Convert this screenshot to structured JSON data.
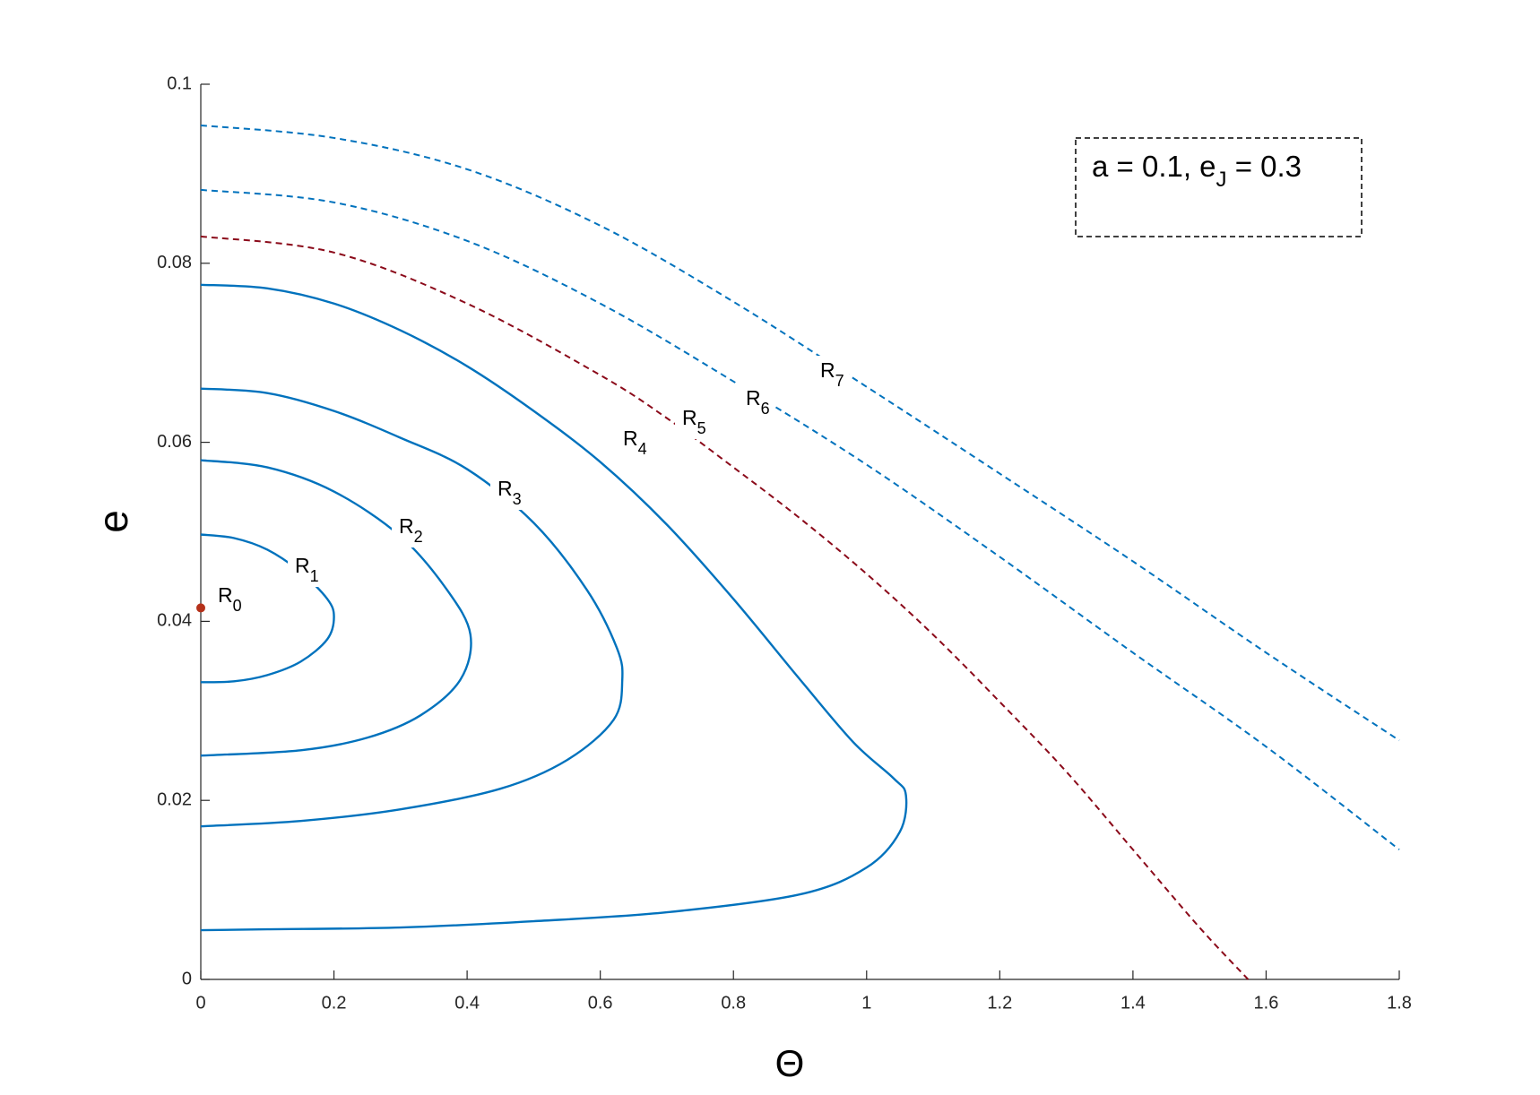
{
  "chart_data": {
    "type": "line",
    "xlabel": "Θ",
    "ylabel": "e",
    "xlim": [
      0,
      1.8
    ],
    "ylim": [
      0,
      0.1
    ],
    "xticks": [
      0,
      0.2,
      0.4,
      0.6,
      0.8,
      1,
      1.2,
      1.4,
      1.6,
      1.8
    ],
    "yticks": [
      0,
      0.02,
      0.04,
      0.06,
      0.08,
      0.1
    ],
    "annotation": [
      "a = 0.1, e",
      "J",
      " = 0.3"
    ],
    "series": [
      {
        "label": [
          "R",
          "0"
        ],
        "color": "#b5311a",
        "style": "point",
        "x": [
          0
        ],
        "values": [
          0.0415
        ]
      },
      {
        "label": [
          "R",
          "1"
        ],
        "color": "#0072bd",
        "style": "solid",
        "x": [
          0,
          0.05,
          0.1,
          0.15,
          0.19,
          0.2,
          0.19,
          0.15,
          0.1,
          0.05,
          0
        ],
        "values": [
          0.0497,
          0.0493,
          0.048,
          0.0455,
          0.0425,
          0.0405,
          0.038,
          0.0355,
          0.034,
          0.0333,
          0.0332
        ]
      },
      {
        "label": [
          "R",
          "2"
        ],
        "color": "#0072bd",
        "style": "solid",
        "x": [
          0,
          0.1,
          0.2,
          0.3,
          0.37,
          0.405,
          0.39,
          0.33,
          0.25,
          0.15,
          0
        ],
        "values": [
          0.058,
          0.0572,
          0.0545,
          0.0495,
          0.0435,
          0.0385,
          0.0335,
          0.0295,
          0.027,
          0.0256,
          0.025
        ]
      },
      {
        "label": [
          "R",
          "3"
        ],
        "color": "#0072bd",
        "style": "solid",
        "x": [
          0,
          0.1,
          0.2,
          0.3,
          0.4,
          0.5,
          0.58,
          0.625,
          0.633,
          0.62,
          0.55,
          0.45,
          0.3,
          0.15,
          0
        ],
        "values": [
          0.066,
          0.0655,
          0.0635,
          0.0605,
          0.057,
          0.051,
          0.0435,
          0.037,
          0.0334,
          0.029,
          0.0245,
          0.0213,
          0.019,
          0.0177,
          0.0171
        ]
      },
      {
        "label": [
          "R",
          "4"
        ],
        "color": "#0072bd",
        "style": "solid",
        "x": [
          0,
          0.1,
          0.2,
          0.3,
          0.4,
          0.5,
          0.6,
          0.7,
          0.8,
          0.9,
          0.98,
          1.04,
          1.059,
          1.05,
          1.0,
          0.9,
          0.7,
          0.5,
          0.3,
          0.1,
          0
        ],
        "values": [
          0.0776,
          0.0772,
          0.0755,
          0.0725,
          0.0685,
          0.0635,
          0.0578,
          0.0508,
          0.0425,
          0.0335,
          0.0265,
          0.0225,
          0.0206,
          0.0165,
          0.0125,
          0.0095,
          0.0075,
          0.0065,
          0.0058,
          0.0056,
          0.0055
        ]
      },
      {
        "label": [
          "R",
          "5"
        ],
        "color": "#8b0a1a",
        "style": "dashed",
        "x": [
          0,
          0.2,
          0.4,
          0.6,
          0.7,
          0.8,
          0.9,
          1.0,
          1.1,
          1.2,
          1.3,
          1.4,
          1.5,
          1.573
        ],
        "values": [
          0.083,
          0.0812,
          0.0755,
          0.0675,
          0.0627,
          0.0572,
          0.0515,
          0.0453,
          0.0385,
          0.031,
          0.0232,
          0.0145,
          0.0058,
          0
        ]
      },
      {
        "label": [
          "R",
          "6"
        ],
        "color": "#0072bd",
        "style": "dashed",
        "x": [
          0,
          0.2,
          0.4,
          0.6,
          0.8,
          1.0,
          1.2,
          1.4,
          1.6,
          1.8
        ],
        "values": [
          0.0882,
          0.0868,
          0.0825,
          0.0755,
          0.0668,
          0.0575,
          0.0472,
          0.0365,
          0.026,
          0.0145
        ]
      },
      {
        "label": [
          "R",
          "7"
        ],
        "color": "#0072bd",
        "style": "dashed",
        "x": [
          0,
          0.2,
          0.4,
          0.6,
          0.8,
          1.0,
          1.2,
          1.4,
          1.6,
          1.8
        ],
        "values": [
          0.0954,
          0.094,
          0.0905,
          0.0842,
          0.0757,
          0.0662,
          0.0565,
          0.0467,
          0.0365,
          0.0267
        ]
      }
    ]
  }
}
